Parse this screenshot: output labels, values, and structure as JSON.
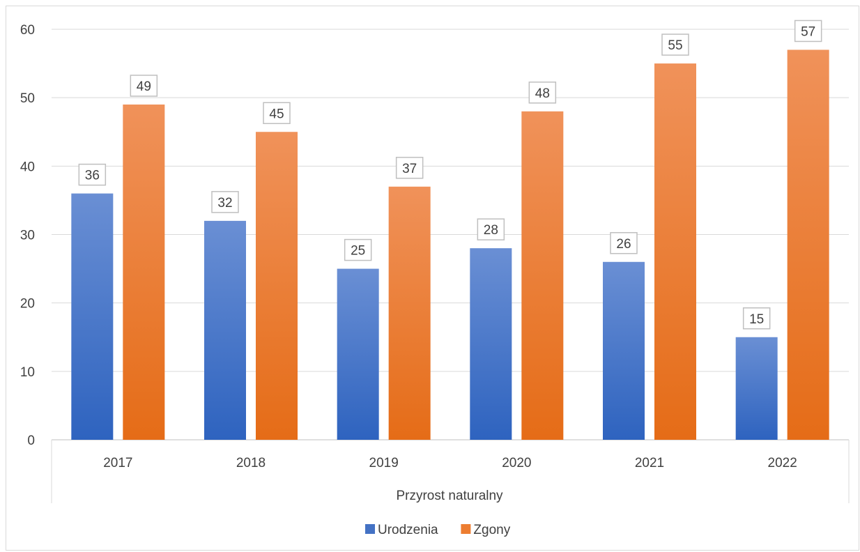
{
  "chart_data": {
    "type": "bar",
    "categories": [
      "2017",
      "2018",
      "2019",
      "2020",
      "2021",
      "2022"
    ],
    "group_label": "Przyrost naturalny",
    "series": [
      {
        "name": "Urodzenia",
        "values": [
          36,
          32,
          25,
          28,
          26,
          15
        ],
        "color": "#4472c4"
      },
      {
        "name": "Zgony",
        "values": [
          49,
          45,
          37,
          48,
          55,
          57
        ],
        "color": "#ed7d31"
      }
    ],
    "ylim": [
      0,
      60
    ],
    "yticks": [
      0,
      10,
      20,
      30,
      40,
      50,
      60
    ],
    "grid": true,
    "data_labels": true,
    "legend": "bottom"
  }
}
